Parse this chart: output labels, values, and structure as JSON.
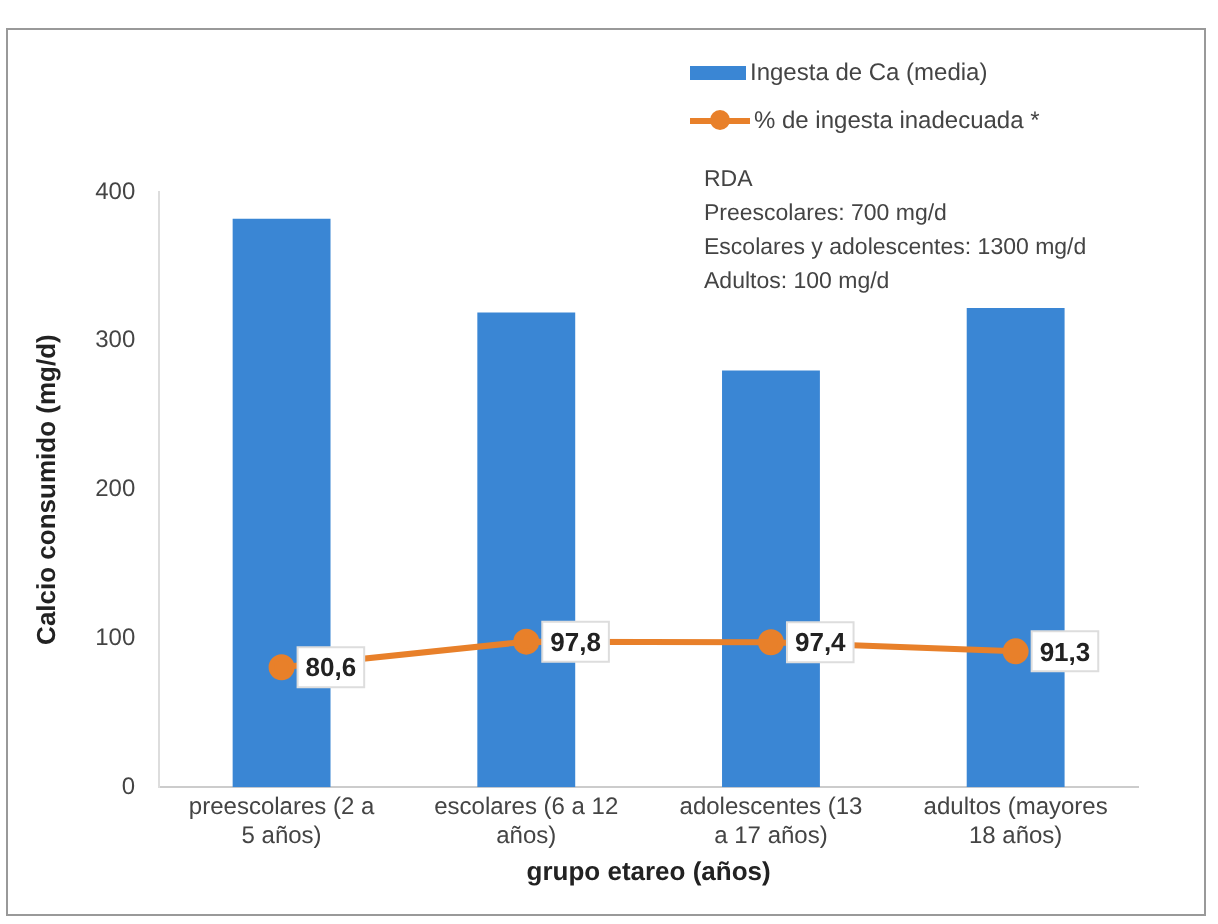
{
  "chart_data": {
    "type": "bar",
    "xlabel": "grupo etareo (años)",
    "ylabel": "Calcio consumido (mg/d)",
    "categories": [
      "preescolares (2 a 5 años)",
      "escolares (6 a 12 años)",
      "adolescentes (13 a 17 años)",
      "adultos (mayores 18 años)"
    ],
    "series": [
      {
        "name": "Ingesta de Ca (media)",
        "color": "#3a86d4",
        "values": [
          382,
          319,
          280,
          322
        ]
      },
      {
        "name": "% de ingesta inadecuada *",
        "type": "line",
        "color": "#e8802a",
        "marker": "circle",
        "values": [
          80.6,
          97.8,
          97.4,
          91.3
        ],
        "value_labels": [
          "80,6",
          "97,8",
          "97,4",
          "91,3"
        ]
      }
    ],
    "ylim": [
      0,
      400
    ],
    "yticks": [
      0,
      100,
      200,
      300,
      400
    ],
    "grid": false,
    "legend": "top right",
    "annotations": [
      "RDA",
      "Preescolares: 700 mg/d",
      "Escolares y adolescentes: 1300 mg/d",
      "Adultos: 100 mg/d"
    ]
  }
}
